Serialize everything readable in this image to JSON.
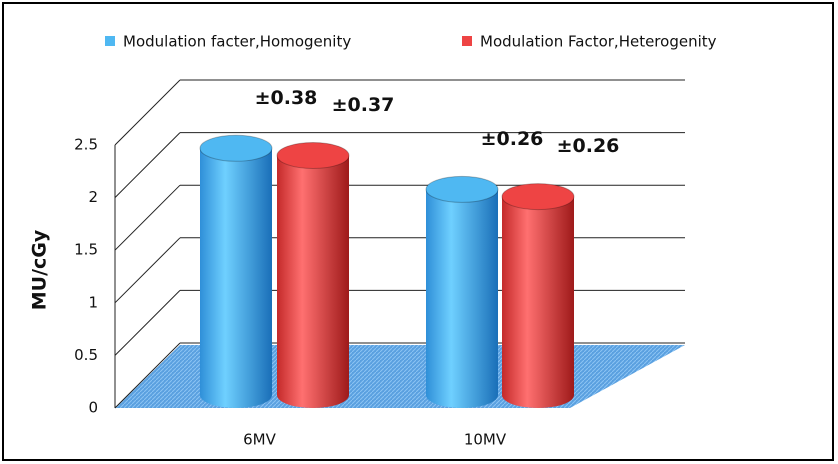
{
  "chart_data": {
    "type": "cylinder-bar",
    "y_label": "MU/cGy",
    "categories": [
      "6MV",
      "10MV"
    ],
    "series": [
      {
        "name": "Modulation facter,Homogenity",
        "color": "#4fb8f2",
        "values": [
          2.4,
          2.0
        ],
        "errors": [
          0.38,
          0.26
        ],
        "error_labels": [
          "±0.38",
          "±0.26"
        ]
      },
      {
        "name": "Modulation Factor,Heterogenity",
        "color": "#ee4444",
        "values": [
          2.33,
          1.93
        ],
        "errors": [
          0.37,
          0.26
        ],
        "error_labels": [
          "±0.37",
          "±0.26"
        ]
      }
    ],
    "ylim": [
      0,
      2.5
    ],
    "yticks": [
      0,
      0.5,
      1,
      1.5,
      2,
      2.5
    ],
    "grid": true,
    "legend": "top"
  }
}
